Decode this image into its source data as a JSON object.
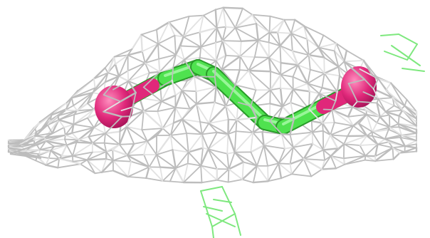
{
  "scene": {
    "background_color": "#ffffff",
    "density_mesh": {
      "color": "#bdbdbd",
      "highlight_color": "#e2e2e2"
    },
    "stray_mesh": {
      "color": "#7ee87e"
    },
    "molecule": {
      "bond_color": "#4fe24f",
      "bond_highlight_color": "#b8ffb8",
      "atom_color": "#e0287a",
      "atom_highlight_color": "#ff8fbf",
      "atom_shadow_color": "#9a1050"
    }
  }
}
